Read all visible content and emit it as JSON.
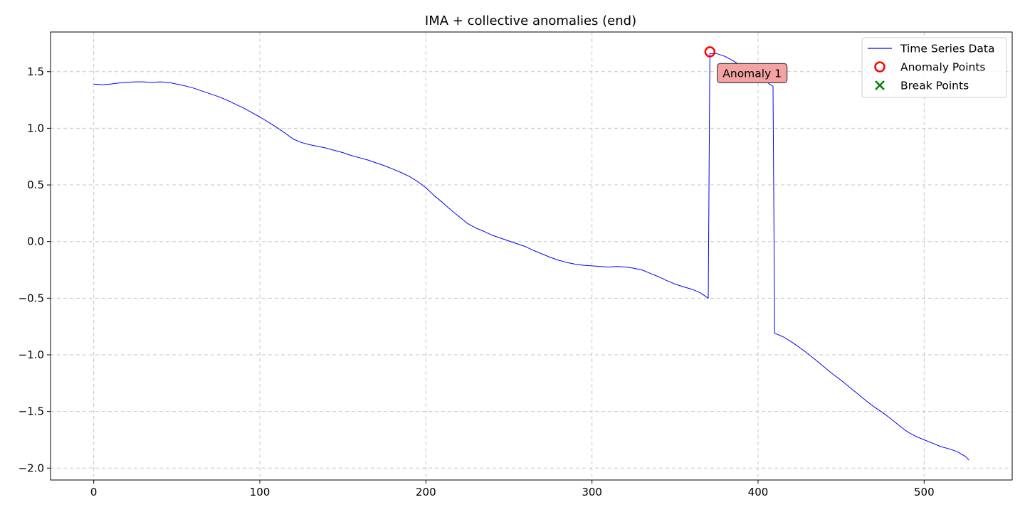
{
  "chart_data": {
    "type": "line",
    "title": "IMA + collective anomalies (end)",
    "xlabel": "",
    "ylabel": "",
    "xlim": [
      -26,
      553
    ],
    "ylim": [
      -2.105,
      1.85
    ],
    "xticks": [
      0,
      100,
      200,
      300,
      400,
      500
    ],
    "yticks": [
      1.5,
      1.0,
      0.5,
      0.0,
      -0.5,
      -1.0,
      -1.5,
      -2.0
    ],
    "ytick_labels": [
      "1.5",
      "1.0",
      "0.5",
      "0.0",
      "−0.5",
      "−1.0",
      "−1.5",
      "−2.0"
    ],
    "grid": true,
    "legend_position": "top-right",
    "legend": [
      {
        "label": "Time Series Data",
        "marker": "line",
        "color": "#0000ff"
      },
      {
        "label": "Anomaly Points",
        "marker": "circle",
        "color": "#ff0000"
      },
      {
        "label": "Break Points",
        "marker": "x",
        "color": "#008000"
      }
    ],
    "series": [
      {
        "name": "Time Series Data",
        "color": "#0000ff",
        "x": [
          0,
          5,
          10,
          15,
          20,
          25,
          30,
          35,
          40,
          45,
          50,
          55,
          60,
          65,
          70,
          75,
          80,
          85,
          90,
          95,
          100,
          105,
          110,
          115,
          120,
          125,
          130,
          135,
          140,
          145,
          150,
          155,
          160,
          165,
          170,
          175,
          180,
          185,
          190,
          195,
          200,
          205,
          210,
          215,
          220,
          225,
          230,
          235,
          240,
          245,
          250,
          255,
          260,
          265,
          270,
          275,
          280,
          285,
          290,
          295,
          300,
          305,
          310,
          315,
          320,
          325,
          330,
          335,
          340,
          345,
          350,
          355,
          360,
          365,
          370,
          371,
          372,
          375,
          380,
          385,
          390,
          395,
          400,
          405,
          409,
          410,
          415,
          420,
          425,
          430,
          435,
          440,
          445,
          450,
          455,
          460,
          465,
          470,
          475,
          480,
          485,
          490,
          495,
          500,
          505,
          510,
          515,
          520,
          525,
          527
        ],
        "y": [
          1.39,
          1.385,
          1.39,
          1.4,
          1.405,
          1.41,
          1.41,
          1.405,
          1.41,
          1.405,
          1.39,
          1.375,
          1.355,
          1.33,
          1.305,
          1.28,
          1.25,
          1.215,
          1.18,
          1.14,
          1.1,
          1.055,
          1.01,
          0.96,
          0.905,
          0.875,
          0.855,
          0.84,
          0.825,
          0.805,
          0.785,
          0.76,
          0.74,
          0.72,
          0.695,
          0.67,
          0.64,
          0.61,
          0.575,
          0.53,
          0.475,
          0.405,
          0.345,
          0.28,
          0.22,
          0.16,
          0.12,
          0.09,
          0.055,
          0.03,
          0.005,
          -0.02,
          -0.045,
          -0.08,
          -0.11,
          -0.14,
          -0.165,
          -0.185,
          -0.2,
          -0.21,
          -0.215,
          -0.22,
          -0.225,
          -0.22,
          -0.225,
          -0.235,
          -0.25,
          -0.28,
          -0.31,
          -0.345,
          -0.375,
          -0.4,
          -0.42,
          -0.45,
          -0.5,
          1.66,
          1.66,
          1.66,
          1.635,
          1.595,
          1.55,
          1.505,
          1.46,
          1.41,
          1.37,
          -0.81,
          -0.84,
          -0.885,
          -0.935,
          -0.99,
          -1.05,
          -1.11,
          -1.17,
          -1.225,
          -1.285,
          -1.345,
          -1.405,
          -1.46,
          -1.51,
          -1.565,
          -1.625,
          -1.68,
          -1.72,
          -1.75,
          -1.78,
          -1.81,
          -1.83,
          -1.855,
          -1.9,
          -1.93
        ]
      }
    ],
    "anomaly_points": [
      {
        "x": 371,
        "y": 1.675
      }
    ],
    "break_points": [],
    "annotations": [
      {
        "text": "Anomaly 1",
        "x": 378,
        "y": 1.49
      }
    ]
  }
}
